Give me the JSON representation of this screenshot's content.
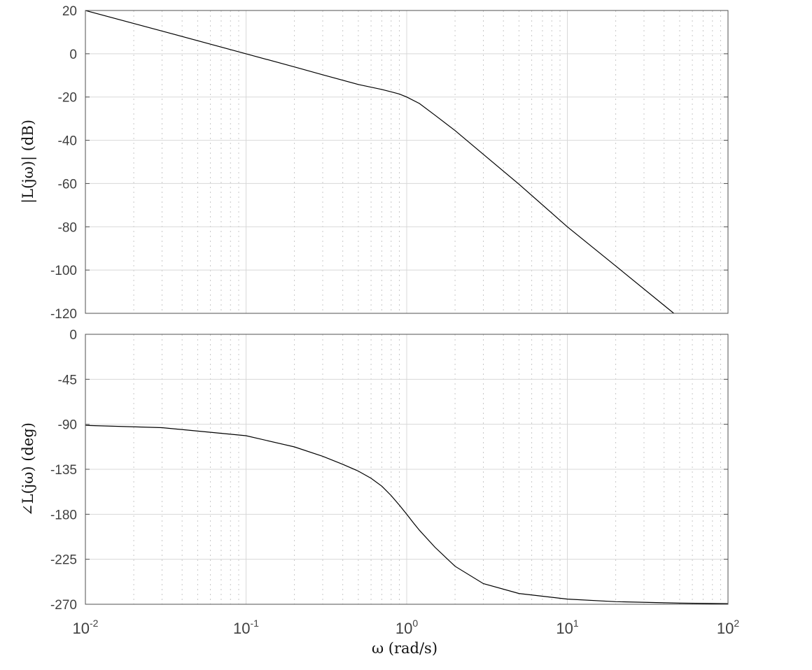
{
  "chart_data": [
    {
      "type": "line",
      "panel": "magnitude",
      "ylabel": "|L(jω)| (dB)",
      "xscale": "log",
      "xlim": [
        0.01,
        100
      ],
      "ylim": [
        -120,
        20
      ],
      "yticks": [
        "20",
        "0",
        "-20",
        "-40",
        "-60",
        "-80",
        "-100",
        "-120"
      ],
      "grid": true,
      "series": [
        {
          "x": [
            0.01,
            0.03,
            0.1,
            0.2,
            0.3,
            0.5,
            0.7,
            0.8,
            0.9,
            1.0,
            1.2,
            1.5,
            2,
            3,
            5,
            10,
            20,
            46
          ],
          "y": [
            20,
            10.5,
            0,
            -6.1,
            -9.7,
            -14.2,
            -16.5,
            -17.6,
            -18.6,
            -20,
            -23,
            -28.4,
            -35.5,
            -46.5,
            -60.3,
            -80,
            -98.1,
            -120
          ]
        }
      ]
    },
    {
      "type": "line",
      "panel": "phase",
      "ylabel": "∠L(jω) (deg)",
      "xlabel": "ω (rad/s)",
      "xscale": "log",
      "xlim": [
        0.01,
        100
      ],
      "ylim": [
        -270,
        0
      ],
      "yticks": [
        "0",
        "-45",
        "-90",
        "-135",
        "-180",
        "-225",
        "-270"
      ],
      "xticks": [
        {
          "base": "10",
          "exp": "-2"
        },
        {
          "base": "10",
          "exp": "-1"
        },
        {
          "base": "10",
          "exp": "0"
        },
        {
          "base": "10",
          "exp": "1"
        },
        {
          "base": "10",
          "exp": "2"
        }
      ],
      "grid": true,
      "series": [
        {
          "x": [
            0.01,
            0.03,
            0.1,
            0.2,
            0.3,
            0.4,
            0.5,
            0.6,
            0.7,
            0.8,
            0.9,
            1.0,
            1.1,
            1.2,
            1.5,
            2,
            3,
            5,
            10,
            20,
            50,
            100
          ],
          "y": [
            -91.1,
            -93.4,
            -101.4,
            -112.6,
            -122,
            -130,
            -136.8,
            -144,
            -151.9,
            -161.3,
            -170.8,
            -180,
            -188.5,
            -196,
            -213,
            -232,
            -249.4,
            -259.2,
            -264.8,
            -267.4,
            -268.9,
            -269.4
          ]
        }
      ]
    }
  ]
}
